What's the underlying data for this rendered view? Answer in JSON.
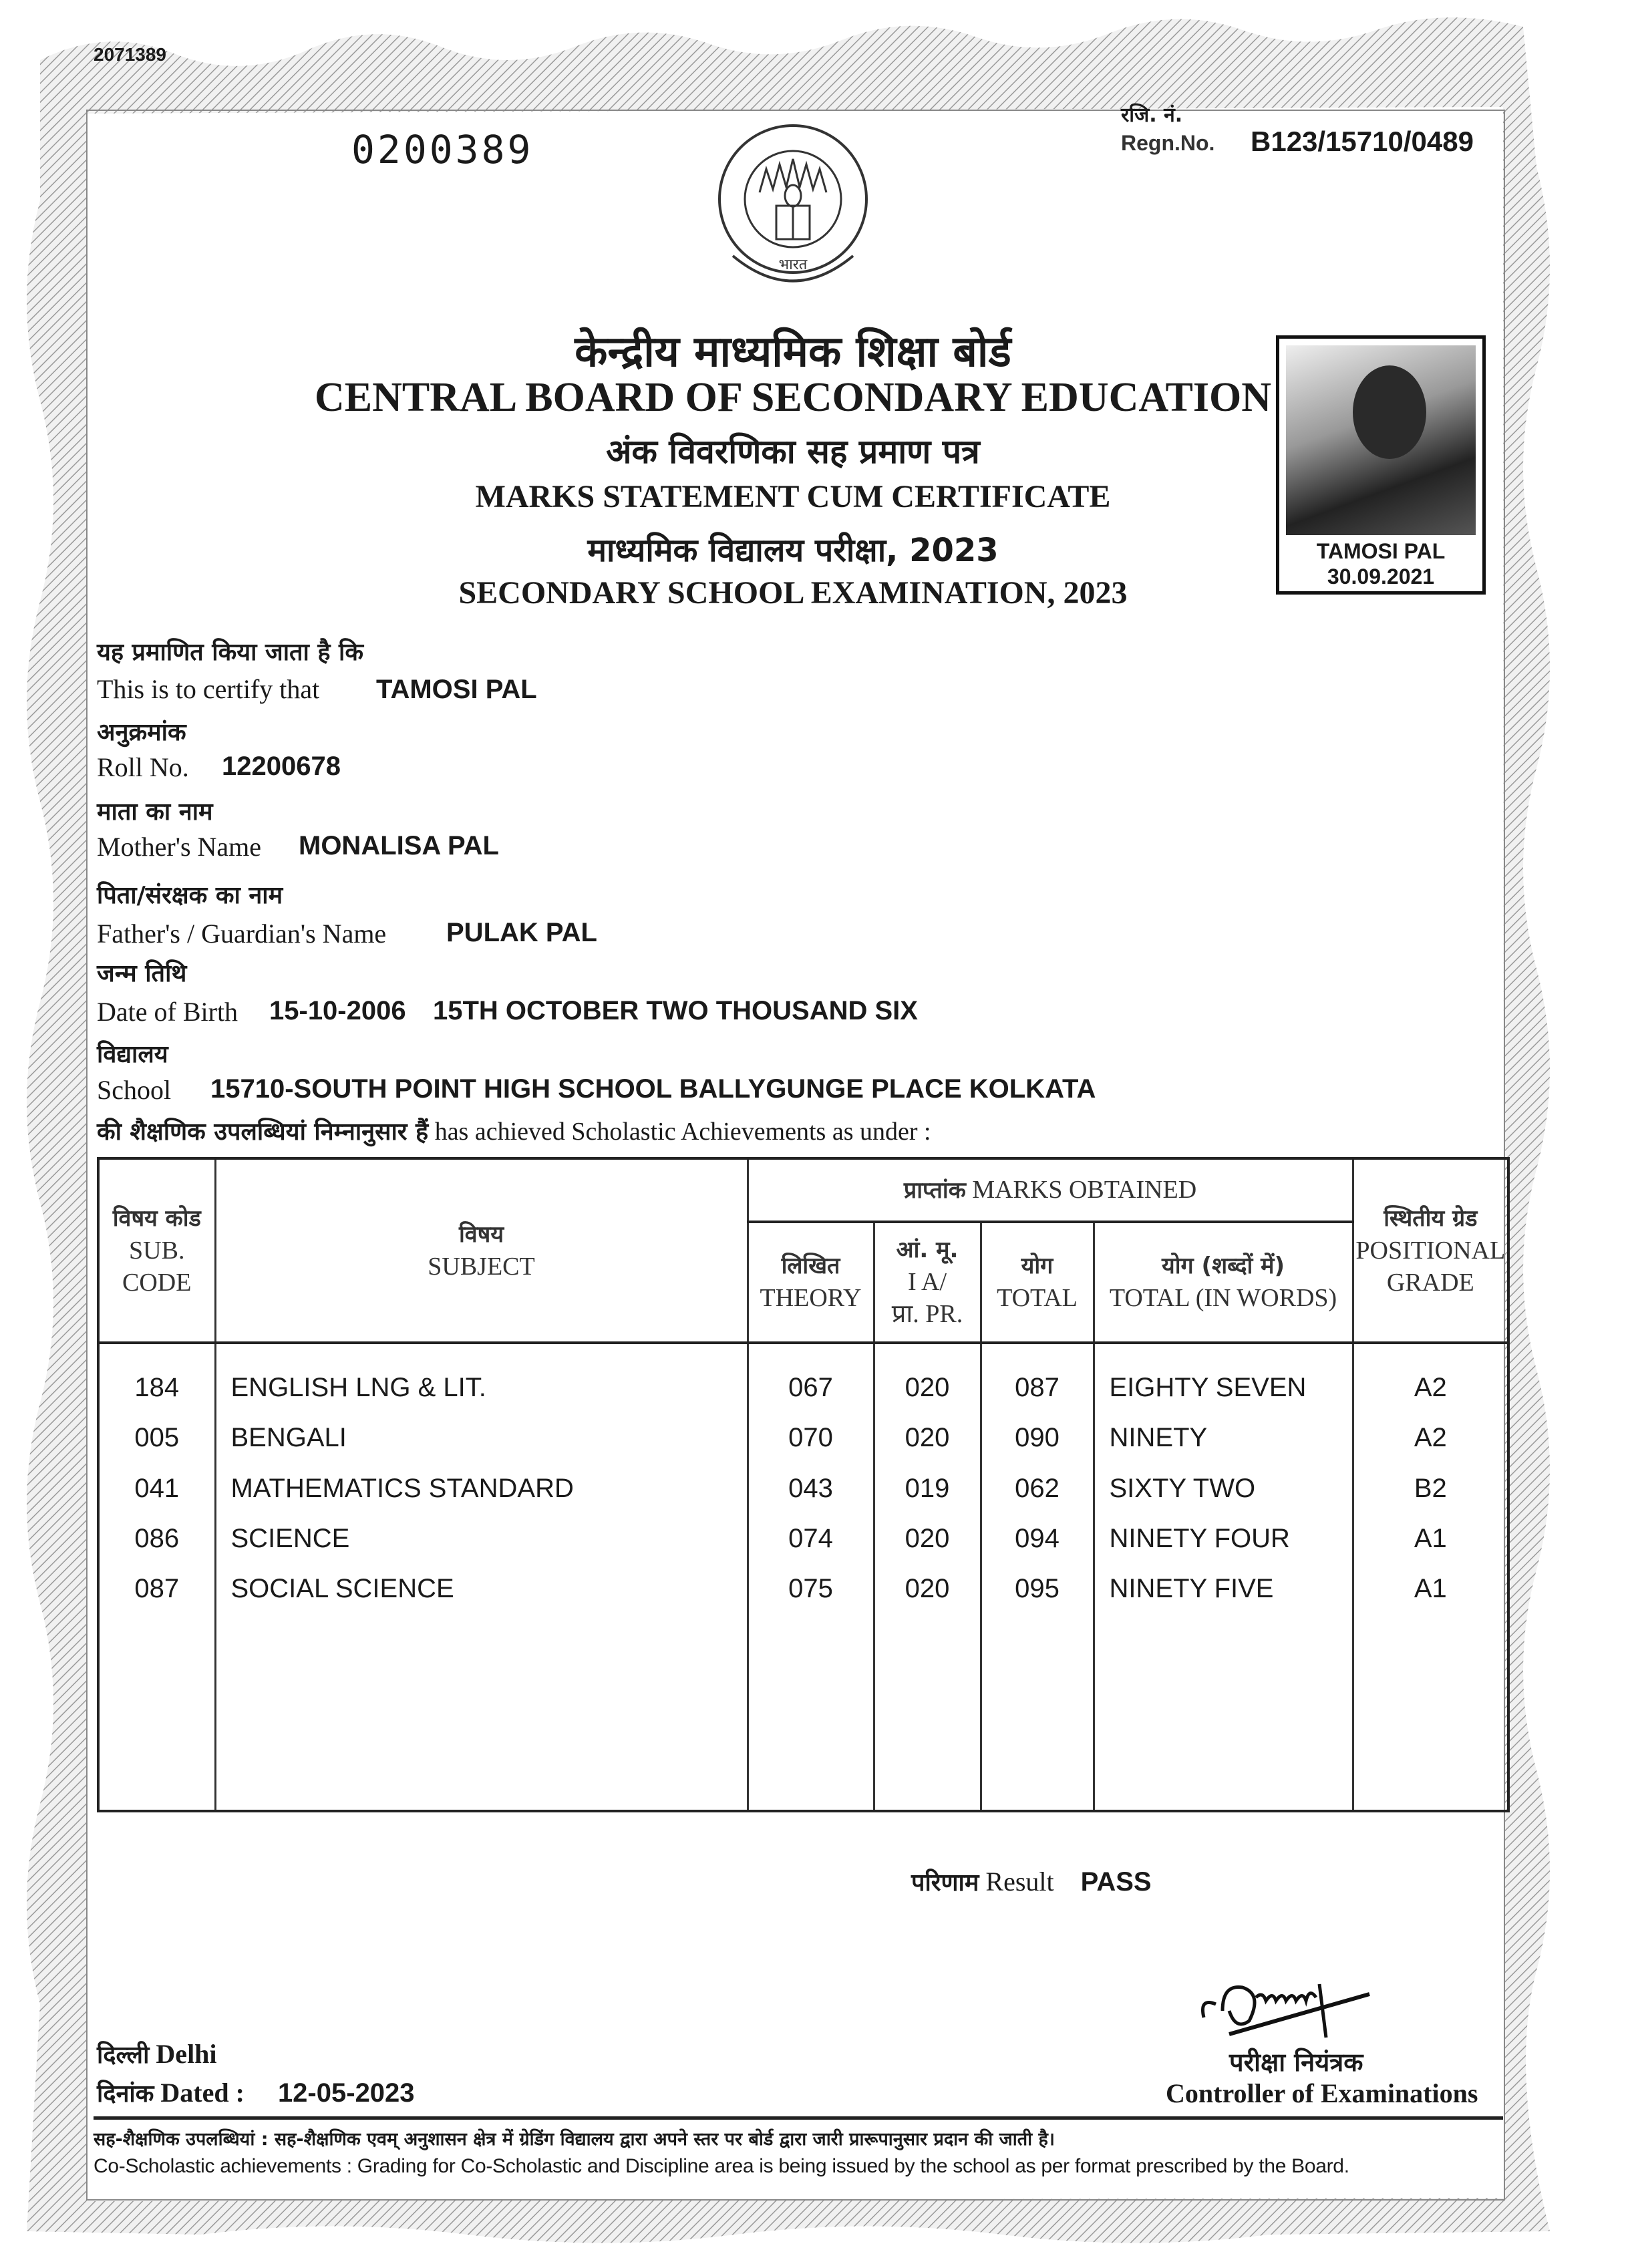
{
  "certificate": {
    "serial_top": "2071389",
    "document_no": "0200389",
    "regn_label_hindi": "रजि. नं.",
    "regn_label": "Regn.No.",
    "regn_no": "B123/15710/0489",
    "emblem_text_hindi": "केन्द्रीय माध्यमिक शिक्षा बोर्ड",
    "emblem_bottom": "भारत",
    "board_hindi": "केन्द्रीय माध्यमिक शिक्षा बोर्ड",
    "board": "CENTRAL BOARD OF SECONDARY EDUCATION",
    "doc_type_hindi": "अंक विवरणिका सह प्रमाण पत्र",
    "doc_type": "MARKS STATEMENT CUM CERTIFICATE",
    "exam_hindi": "माध्यमिक विद्यालय परीक्षा, 2023",
    "exam": "SECONDARY SCHOOL EXAMINATION, 2023",
    "photo": {
      "name": "TAMOSI PAL",
      "date": "30.09.2021"
    }
  },
  "fields": [
    {
      "hindi": "यह प्रमाणित किया जाता है कि",
      "label": "This is to certify that",
      "value": "TAMOSI PAL"
    },
    {
      "hindi": "अनुक्रमांक",
      "label": "Roll No.",
      "value": "12200678"
    },
    {
      "hindi": "माता का नाम",
      "label": "Mother's Name",
      "value": "MONALISA PAL"
    },
    {
      "hindi": "पिता/संरक्षक का नाम",
      "label": "Father's / Guardian's Name",
      "value": "PULAK PAL"
    },
    {
      "hindi": "जन्म तिथि",
      "label": "Date of Birth",
      "value": "15-10-2006",
      "value2": "15TH OCTOBER TWO THOUSAND SIX"
    },
    {
      "hindi": "विद्यालय",
      "label": "School",
      "value": "15710-SOUTH POINT HIGH SCHOOL BALLYGUNGE PLACE KOLKATA"
    }
  ],
  "achievement_line": {
    "hindi": "की शैक्षणिक उपलब्धियां निम्नानुसार हैं",
    "english": "has achieved Scholastic Achievements as under :"
  },
  "table": {
    "headers": {
      "code_hindi": "विषय कोड",
      "code": "SUB. CODE",
      "subject_hindi": "विषय",
      "subject": "SUBJECT",
      "marks_hindi": "प्राप्तांक",
      "marks": "MARKS OBTAINED",
      "theory_hindi": "लिखित",
      "theory": "THEORY",
      "ia_hindi": "आं. मू.",
      "ia": "I A/",
      "ia_pr": "प्रा. PR.",
      "total_hindi": "योग",
      "total": "TOTAL",
      "words_hindi": "योग (शब्दों में)",
      "words": "TOTAL (IN WORDS)",
      "grade_hindi": "स्थितीय ग्रेड",
      "grade": "POSITIONAL GRADE"
    },
    "rows": [
      {
        "code": "184",
        "subject": "ENGLISH LNG & LIT.",
        "theory": "067",
        "ia": "020",
        "total": "087",
        "words": "EIGHTY SEVEN",
        "grade": "A2"
      },
      {
        "code": "005",
        "subject": "BENGALI",
        "theory": "070",
        "ia": "020",
        "total": "090",
        "words": "NINETY",
        "grade": "A2"
      },
      {
        "code": "041",
        "subject": "MATHEMATICS STANDARD",
        "theory": "043",
        "ia": "019",
        "total": "062",
        "words": "SIXTY TWO",
        "grade": "B2"
      },
      {
        "code": "086",
        "subject": "SCIENCE",
        "theory": "074",
        "ia": "020",
        "total": "094",
        "words": "NINETY FOUR",
        "grade": "A1"
      },
      {
        "code": "087",
        "subject": "SOCIAL SCIENCE",
        "theory": "075",
        "ia": "020",
        "total": "095",
        "words": "NINETY FIVE",
        "grade": "A1"
      }
    ]
  },
  "result": {
    "label_hindi": "परिणाम",
    "label": "Result",
    "value": "PASS"
  },
  "place": {
    "hindi": "दिल्ली",
    "english": "Delhi"
  },
  "dated": {
    "hindi": "दिनांक",
    "label": "Dated :",
    "value": "12-05-2023"
  },
  "controller": {
    "hindi": "परीक्षा नियंत्रक",
    "english": "Controller of Examinations"
  },
  "footer": {
    "hindi": "सह-शैक्षणिक उपलब्धियां : सह-शैक्षणिक एवम् अनुशासन क्षेत्र में ग्रेडिंग विद्यालय द्वारा अपने स्तर पर बोर्ड द्वारा जारी प्रारूपानुसार प्रदान की जाती है।",
    "english": "Co-Scholastic achievements : Grading for Co-Scholastic and Discipline area is being issued by the school as per format prescribed by the Board."
  }
}
